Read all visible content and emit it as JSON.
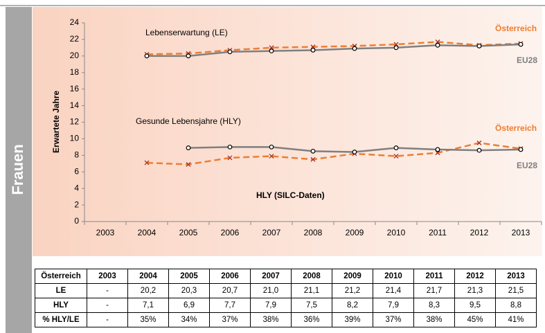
{
  "sidebar": "Frauen",
  "chart_data": {
    "type": "line",
    "y_label": "Erwartete Jahre",
    "annotations": [
      "Lebenserwartung (LE)",
      "Gesunde Lebensjahre (HLY)",
      "HLY (SILC-Daten)"
    ],
    "categories": [
      "2003",
      "2004",
      "2005",
      "2006",
      "2007",
      "2008",
      "2009",
      "2010",
      "2011",
      "2012",
      "2013"
    ],
    "ylim": [
      0,
      24
    ],
    "yticks": [
      0,
      2,
      4,
      6,
      8,
      10,
      12,
      14,
      16,
      18,
      20,
      22,
      24
    ],
    "series": [
      {
        "name": "Österreich",
        "color": "#ed7d31",
        "values": [
          null,
          20.2,
          20.3,
          20.7,
          21.0,
          21.1,
          21.2,
          21.4,
          21.7,
          21.3,
          21.5
        ]
      },
      {
        "name": "EU28",
        "color": "#7f7f7f",
        "values": [
          null,
          20.0,
          20.0,
          20.5,
          20.6,
          20.7,
          20.9,
          21.0,
          21.3,
          21.2,
          21.4
        ]
      },
      {
        "name": "Österreich",
        "color": "#ed7d31",
        "values": [
          null,
          7.1,
          6.9,
          7.7,
          7.9,
          7.5,
          8.2,
          7.9,
          8.3,
          9.5,
          8.8
        ]
      },
      {
        "name": "EU28",
        "color": "#7f7f7f",
        "values": [
          null,
          null,
          8.9,
          9.0,
          9.0,
          8.5,
          8.4,
          8.9,
          8.7,
          8.6,
          8.7
        ]
      }
    ]
  },
  "table": {
    "header": [
      "Österreich",
      "2003",
      "2004",
      "2005",
      "2006",
      "2007",
      "2008",
      "2009",
      "2010",
      "2011",
      "2012",
      "2013"
    ],
    "rows": [
      [
        "LE",
        "-",
        "20,2",
        "20,3",
        "20,7",
        "21,0",
        "21,1",
        "21,2",
        "21,4",
        "21,7",
        "21,3",
        "21,5"
      ],
      [
        "HLY",
        "-",
        "7,1",
        "6,9",
        "7,7",
        "7,9",
        "7,5",
        "8,2",
        "7,9",
        "8,3",
        "9,5",
        "8,8"
      ],
      [
        "% HLY/LE",
        "-",
        "35%",
        "34%",
        "37%",
        "38%",
        "36%",
        "39%",
        "37%",
        "38%",
        "45%",
        "41%"
      ]
    ]
  }
}
